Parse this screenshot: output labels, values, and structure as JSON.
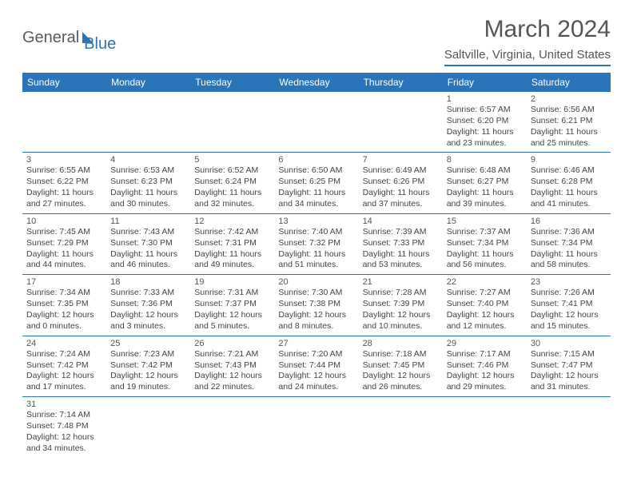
{
  "logo": {
    "text1": "General",
    "text2": "Blue"
  },
  "title": "March 2024",
  "location": "Saltville, Virginia, United States",
  "colors": {
    "brand": "#2a74b8",
    "text": "#555555",
    "celltext": "#444444",
    "bg": "#ffffff"
  },
  "typography": {
    "title_fontsize": 30,
    "location_fontsize": 15,
    "header_fontsize": 12,
    "cell_fontsize": 10.5,
    "daynum_fontsize": 11
  },
  "weekdays": [
    "Sunday",
    "Monday",
    "Tuesday",
    "Wednesday",
    "Thursday",
    "Friday",
    "Saturday"
  ],
  "grid": {
    "columns": 7,
    "rows": 6,
    "first_weekday_index": 5,
    "days_in_month": 31
  },
  "days": {
    "1": {
      "sunrise": "6:57 AM",
      "sunset": "6:20 PM",
      "daylight": "11 hours and 23 minutes."
    },
    "2": {
      "sunrise": "6:56 AM",
      "sunset": "6:21 PM",
      "daylight": "11 hours and 25 minutes."
    },
    "3": {
      "sunrise": "6:55 AM",
      "sunset": "6:22 PM",
      "daylight": "11 hours and 27 minutes."
    },
    "4": {
      "sunrise": "6:53 AM",
      "sunset": "6:23 PM",
      "daylight": "11 hours and 30 minutes."
    },
    "5": {
      "sunrise": "6:52 AM",
      "sunset": "6:24 PM",
      "daylight": "11 hours and 32 minutes."
    },
    "6": {
      "sunrise": "6:50 AM",
      "sunset": "6:25 PM",
      "daylight": "11 hours and 34 minutes."
    },
    "7": {
      "sunrise": "6:49 AM",
      "sunset": "6:26 PM",
      "daylight": "11 hours and 37 minutes."
    },
    "8": {
      "sunrise": "6:48 AM",
      "sunset": "6:27 PM",
      "daylight": "11 hours and 39 minutes."
    },
    "9": {
      "sunrise": "6:46 AM",
      "sunset": "6:28 PM",
      "daylight": "11 hours and 41 minutes."
    },
    "10": {
      "sunrise": "7:45 AM",
      "sunset": "7:29 PM",
      "daylight": "11 hours and 44 minutes."
    },
    "11": {
      "sunrise": "7:43 AM",
      "sunset": "7:30 PM",
      "daylight": "11 hours and 46 minutes."
    },
    "12": {
      "sunrise": "7:42 AM",
      "sunset": "7:31 PM",
      "daylight": "11 hours and 49 minutes."
    },
    "13": {
      "sunrise": "7:40 AM",
      "sunset": "7:32 PM",
      "daylight": "11 hours and 51 minutes."
    },
    "14": {
      "sunrise": "7:39 AM",
      "sunset": "7:33 PM",
      "daylight": "11 hours and 53 minutes."
    },
    "15": {
      "sunrise": "7:37 AM",
      "sunset": "7:34 PM",
      "daylight": "11 hours and 56 minutes."
    },
    "16": {
      "sunrise": "7:36 AM",
      "sunset": "7:34 PM",
      "daylight": "11 hours and 58 minutes."
    },
    "17": {
      "sunrise": "7:34 AM",
      "sunset": "7:35 PM",
      "daylight": "12 hours and 0 minutes."
    },
    "18": {
      "sunrise": "7:33 AM",
      "sunset": "7:36 PM",
      "daylight": "12 hours and 3 minutes."
    },
    "19": {
      "sunrise": "7:31 AM",
      "sunset": "7:37 PM",
      "daylight": "12 hours and 5 minutes."
    },
    "20": {
      "sunrise": "7:30 AM",
      "sunset": "7:38 PM",
      "daylight": "12 hours and 8 minutes."
    },
    "21": {
      "sunrise": "7:28 AM",
      "sunset": "7:39 PM",
      "daylight": "12 hours and 10 minutes."
    },
    "22": {
      "sunrise": "7:27 AM",
      "sunset": "7:40 PM",
      "daylight": "12 hours and 12 minutes."
    },
    "23": {
      "sunrise": "7:26 AM",
      "sunset": "7:41 PM",
      "daylight": "12 hours and 15 minutes."
    },
    "24": {
      "sunrise": "7:24 AM",
      "sunset": "7:42 PM",
      "daylight": "12 hours and 17 minutes."
    },
    "25": {
      "sunrise": "7:23 AM",
      "sunset": "7:42 PM",
      "daylight": "12 hours and 19 minutes."
    },
    "26": {
      "sunrise": "7:21 AM",
      "sunset": "7:43 PM",
      "daylight": "12 hours and 22 minutes."
    },
    "27": {
      "sunrise": "7:20 AM",
      "sunset": "7:44 PM",
      "daylight": "12 hours and 24 minutes."
    },
    "28": {
      "sunrise": "7:18 AM",
      "sunset": "7:45 PM",
      "daylight": "12 hours and 26 minutes."
    },
    "29": {
      "sunrise": "7:17 AM",
      "sunset": "7:46 PM",
      "daylight": "12 hours and 29 minutes."
    },
    "30": {
      "sunrise": "7:15 AM",
      "sunset": "7:47 PM",
      "daylight": "12 hours and 31 minutes."
    },
    "31": {
      "sunrise": "7:14 AM",
      "sunset": "7:48 PM",
      "daylight": "12 hours and 34 minutes."
    }
  },
  "labels": {
    "sunrise": "Sunrise:",
    "sunset": "Sunset:",
    "daylight": "Daylight:"
  }
}
